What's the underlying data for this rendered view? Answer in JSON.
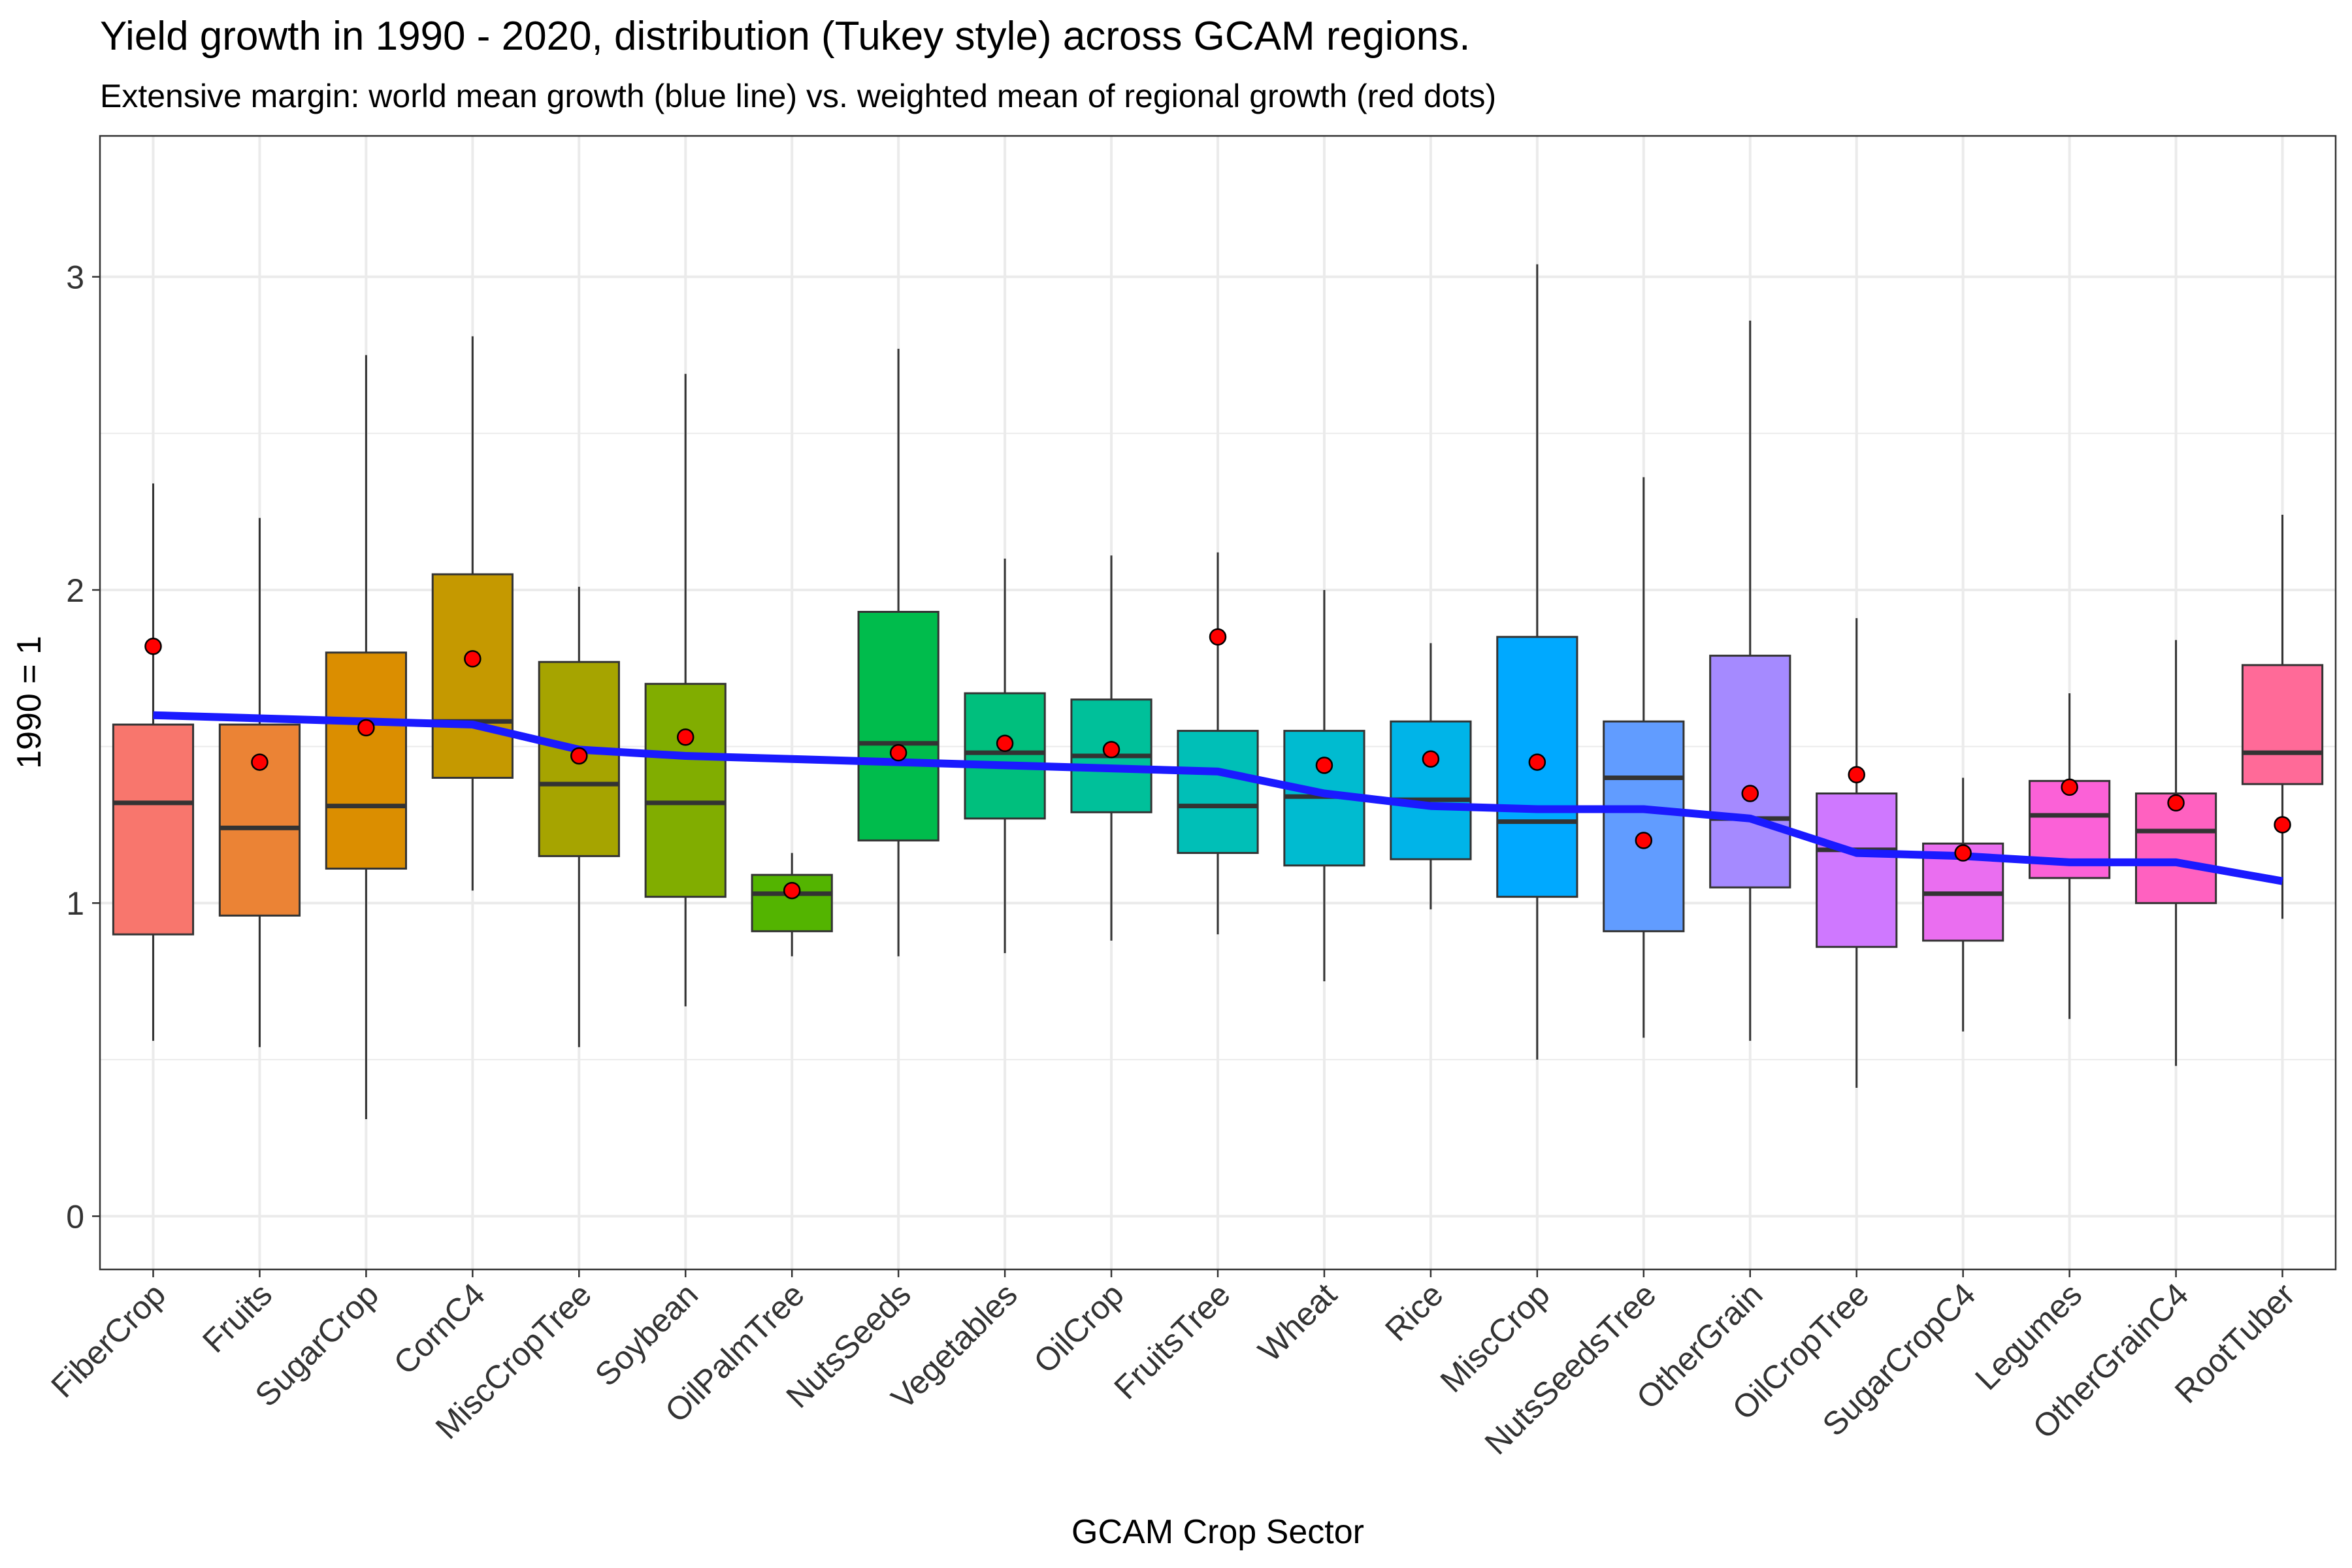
{
  "chart_data": {
    "type": "boxplot",
    "title": "Yield growth in 1990 - 2020, distribution (Tukey style) across GCAM regions.",
    "subtitle": "Extensive margin: world mean growth (blue line) vs. weighted mean of regional growth (red dots)",
    "xlabel": "GCAM Crop Sector",
    "ylabel": "1990 = 1",
    "ylim": [
      -0.17,
      3.45
    ],
    "yticks": [
      0,
      1,
      2,
      3
    ],
    "grid": true,
    "legend": "none",
    "colors": {
      "world_mean_line": "#1a1aff",
      "weighted_mean_dots": "#ff0000"
    },
    "categories": [
      "FiberCrop",
      "Fruits",
      "SugarCrop",
      "CornC4",
      "MiscCropTree",
      "Soybean",
      "OilPalmTree",
      "NutsSeeds",
      "Vegetables",
      "OilCrop",
      "FruitsTree",
      "Wheat",
      "Rice",
      "MiscCrop",
      "NutsSeedsTree",
      "OtherGrain",
      "OilCropTree",
      "SugarCropC4",
      "Legumes",
      "OtherGrainC4",
      "RootTuber"
    ],
    "box_colors": [
      "#f8766d",
      "#eb8335",
      "#db8e00",
      "#c59900",
      "#a6a400",
      "#81ad00",
      "#53b400",
      "#00bc4c",
      "#00bf7d",
      "#00c09a",
      "#00bfb7",
      "#00bbd0",
      "#00b4e8",
      "#00a9ff",
      "#619cff",
      "#a58aff",
      "#cf78ff",
      "#ea6ef0",
      "#fb61d7",
      "#ff61c0",
      "#ff6a98"
    ],
    "boxes": [
      {
        "lower": 0.56,
        "q1": 0.9,
        "median": 1.32,
        "q3": 1.57,
        "upper": 2.34
      },
      {
        "lower": 0.54,
        "q1": 0.96,
        "median": 1.24,
        "q3": 1.57,
        "upper": 2.23
      },
      {
        "lower": 0.31,
        "q1": 1.11,
        "median": 1.31,
        "q3": 1.8,
        "upper": 2.75
      },
      {
        "lower": 1.04,
        "q1": 1.4,
        "median": 1.58,
        "q3": 2.05,
        "upper": 2.81
      },
      {
        "lower": 0.54,
        "q1": 1.15,
        "median": 1.38,
        "q3": 1.77,
        "upper": 2.01
      },
      {
        "lower": 0.67,
        "q1": 1.02,
        "median": 1.32,
        "q3": 1.7,
        "upper": 2.69
      },
      {
        "lower": 0.83,
        "q1": 0.91,
        "median": 1.03,
        "q3": 1.09,
        "upper": 1.16
      },
      {
        "lower": 0.83,
        "q1": 1.2,
        "median": 1.51,
        "q3": 1.93,
        "upper": 2.77
      },
      {
        "lower": 0.84,
        "q1": 1.27,
        "median": 1.48,
        "q3": 1.67,
        "upper": 2.1
      },
      {
        "lower": 0.88,
        "q1": 1.29,
        "median": 1.47,
        "q3": 1.65,
        "upper": 2.11
      },
      {
        "lower": 0.9,
        "q1": 1.16,
        "median": 1.31,
        "q3": 1.55,
        "upper": 2.12
      },
      {
        "lower": 0.75,
        "q1": 1.12,
        "median": 1.34,
        "q3": 1.55,
        "upper": 2.0
      },
      {
        "lower": 0.98,
        "q1": 1.14,
        "median": 1.33,
        "q3": 1.58,
        "upper": 1.83
      },
      {
        "lower": 0.5,
        "q1": 1.02,
        "median": 1.26,
        "q3": 1.85,
        "upper": 3.04
      },
      {
        "lower": 0.57,
        "q1": 0.91,
        "median": 1.4,
        "q3": 1.58,
        "upper": 2.36
      },
      {
        "lower": 0.56,
        "q1": 1.05,
        "median": 1.27,
        "q3": 1.79,
        "upper": 2.86
      },
      {
        "lower": 0.41,
        "q1": 0.86,
        "median": 1.17,
        "q3": 1.35,
        "upper": 1.91
      },
      {
        "lower": 0.59,
        "q1": 0.88,
        "median": 1.03,
        "q3": 1.19,
        "upper": 1.4
      },
      {
        "lower": 0.63,
        "q1": 1.08,
        "median": 1.28,
        "q3": 1.39,
        "upper": 1.67
      },
      {
        "lower": 0.48,
        "q1": 1.0,
        "median": 1.23,
        "q3": 1.35,
        "upper": 1.84
      },
      {
        "lower": 0.95,
        "q1": 1.38,
        "median": 1.48,
        "q3": 1.76,
        "upper": 2.24
      }
    ],
    "weighted_mean_dots": [
      1.82,
      1.45,
      1.56,
      1.78,
      1.47,
      1.53,
      1.04,
      1.48,
      1.51,
      1.49,
      1.85,
      1.44,
      1.46,
      1.45,
      1.2,
      1.35,
      1.41,
      1.16,
      1.37,
      1.32,
      1.25
    ],
    "world_mean_line": [
      1.6,
      1.59,
      1.58,
      1.57,
      1.49,
      1.47,
      1.46,
      1.45,
      1.44,
      1.43,
      1.42,
      1.35,
      1.31,
      1.3,
      1.3,
      1.27,
      1.16,
      1.15,
      1.13,
      1.13,
      1.07
    ]
  }
}
